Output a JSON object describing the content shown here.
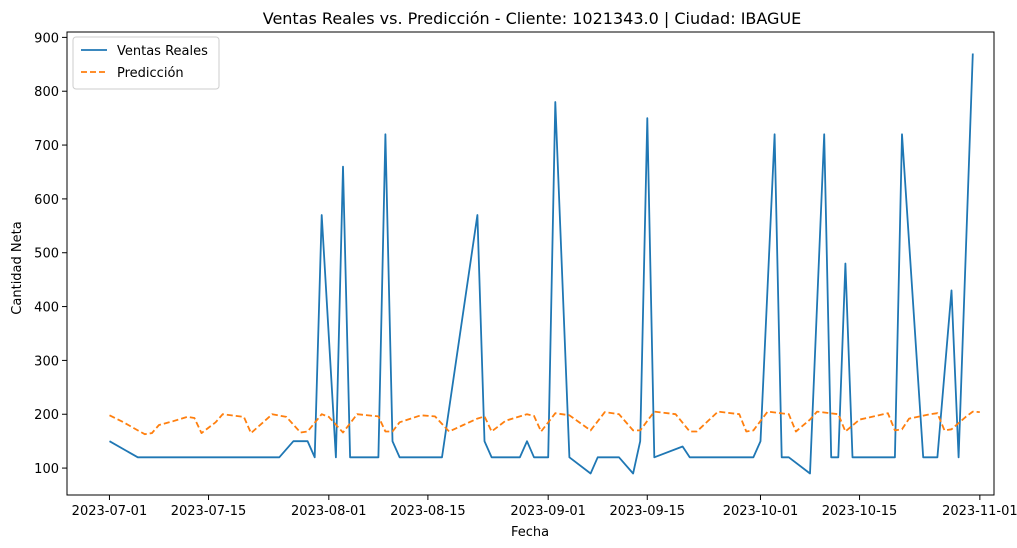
{
  "chart_data": {
    "type": "line",
    "title": "Ventas Reales vs. Predicción - Cliente: 1021343.0 | Ciudad: IBAGUE",
    "xlabel": "Fecha",
    "ylabel": "Cantidad Neta",
    "x_axis_type": "date",
    "xlim": [
      "2023-06-25",
      "2023-11-03"
    ],
    "ylim": [
      50,
      910
    ],
    "x_ticks": [
      "2023-07-01",
      "2023-07-15",
      "2023-08-01",
      "2023-08-15",
      "2023-09-01",
      "2023-09-15",
      "2023-10-01",
      "2023-10-15",
      "2023-11-01"
    ],
    "y_ticks": [
      100,
      200,
      300,
      400,
      500,
      600,
      700,
      800,
      900
    ],
    "grid": false,
    "legend": "top-left",
    "series": [
      {
        "name": "Ventas Reales",
        "color": "#1f77b4",
        "style": "solid",
        "points": [
          [
            "2023-07-01",
            150
          ],
          [
            "2023-07-05",
            120
          ],
          [
            "2023-07-25",
            120
          ],
          [
            "2023-07-27",
            150
          ],
          [
            "2023-07-29",
            150
          ],
          [
            "2023-07-30",
            120
          ],
          [
            "2023-07-31",
            570
          ],
          [
            "2023-08-02",
            120
          ],
          [
            "2023-08-03",
            660
          ],
          [
            "2023-08-04",
            120
          ],
          [
            "2023-08-08",
            120
          ],
          [
            "2023-08-09",
            720
          ],
          [
            "2023-08-10",
            150
          ],
          [
            "2023-08-11",
            120
          ],
          [
            "2023-08-17",
            120
          ],
          [
            "2023-08-22",
            570
          ],
          [
            "2023-08-23",
            150
          ],
          [
            "2023-08-24",
            120
          ],
          [
            "2023-08-28",
            120
          ],
          [
            "2023-08-29",
            150
          ],
          [
            "2023-08-30",
            120
          ],
          [
            "2023-09-01",
            120
          ],
          [
            "2023-09-02",
            780
          ],
          [
            "2023-09-04",
            120
          ],
          [
            "2023-09-07",
            90
          ],
          [
            "2023-09-08",
            120
          ],
          [
            "2023-09-11",
            120
          ],
          [
            "2023-09-13",
            90
          ],
          [
            "2023-09-14",
            150
          ],
          [
            "2023-09-15",
            750
          ],
          [
            "2023-09-16",
            120
          ],
          [
            "2023-09-20",
            140
          ],
          [
            "2023-09-21",
            120
          ],
          [
            "2023-09-30",
            120
          ],
          [
            "2023-10-01",
            150
          ],
          [
            "2023-10-03",
            720
          ],
          [
            "2023-10-04",
            120
          ],
          [
            "2023-10-05",
            120
          ],
          [
            "2023-10-08",
            90
          ],
          [
            "2023-10-10",
            720
          ],
          [
            "2023-10-11",
            120
          ],
          [
            "2023-10-12",
            120
          ],
          [
            "2023-10-13",
            480
          ],
          [
            "2023-10-14",
            120
          ],
          [
            "2023-10-20",
            120
          ],
          [
            "2023-10-21",
            720
          ],
          [
            "2023-10-24",
            120
          ],
          [
            "2023-10-26",
            120
          ],
          [
            "2023-10-28",
            430
          ],
          [
            "2023-10-29",
            120
          ],
          [
            "2023-10-31",
            870
          ]
        ]
      },
      {
        "name": "Predicción",
        "color": "#ff7f0e",
        "style": "dashed",
        "points": [
          [
            "2023-07-01",
            198
          ],
          [
            "2023-07-03",
            185
          ],
          [
            "2023-07-05",
            170
          ],
          [
            "2023-07-06",
            163
          ],
          [
            "2023-07-07",
            165
          ],
          [
            "2023-07-08",
            180
          ],
          [
            "2023-07-10",
            187
          ],
          [
            "2023-07-12",
            195
          ],
          [
            "2023-07-13",
            193
          ],
          [
            "2023-07-14",
            165
          ],
          [
            "2023-07-16",
            185
          ],
          [
            "2023-07-17",
            200
          ],
          [
            "2023-07-20",
            195
          ],
          [
            "2023-07-21",
            165
          ],
          [
            "2023-07-24",
            200
          ],
          [
            "2023-07-26",
            195
          ],
          [
            "2023-07-28",
            166
          ],
          [
            "2023-07-29",
            168
          ],
          [
            "2023-07-31",
            200
          ],
          [
            "2023-08-01",
            195
          ],
          [
            "2023-08-03",
            166
          ],
          [
            "2023-08-05",
            200
          ],
          [
            "2023-08-08",
            196
          ],
          [
            "2023-08-09",
            168
          ],
          [
            "2023-08-10",
            168
          ],
          [
            "2023-08-11",
            185
          ],
          [
            "2023-08-14",
            198
          ],
          [
            "2023-08-16",
            196
          ],
          [
            "2023-08-18",
            168
          ],
          [
            "2023-08-20",
            180
          ],
          [
            "2023-08-22",
            192
          ],
          [
            "2023-08-23",
            196
          ],
          [
            "2023-08-24",
            168
          ],
          [
            "2023-08-26",
            188
          ],
          [
            "2023-08-29",
            200
          ],
          [
            "2023-08-30",
            197
          ],
          [
            "2023-08-31",
            168
          ],
          [
            "2023-09-02",
            202
          ],
          [
            "2023-09-04",
            198
          ],
          [
            "2023-09-07",
            170
          ],
          [
            "2023-09-09",
            204
          ],
          [
            "2023-09-11",
            200
          ],
          [
            "2023-09-13",
            170
          ],
          [
            "2023-09-14",
            170
          ],
          [
            "2023-09-16",
            205
          ],
          [
            "2023-09-19",
            200
          ],
          [
            "2023-09-21",
            168
          ],
          [
            "2023-09-22",
            168
          ],
          [
            "2023-09-25",
            205
          ],
          [
            "2023-09-28",
            200
          ],
          [
            "2023-09-29",
            168
          ],
          [
            "2023-09-30",
            170
          ],
          [
            "2023-10-02",
            205
          ],
          [
            "2023-10-05",
            200
          ],
          [
            "2023-10-06",
            168
          ],
          [
            "2023-10-08",
            190
          ],
          [
            "2023-10-09",
            205
          ],
          [
            "2023-10-12",
            200
          ],
          [
            "2023-10-13",
            168
          ],
          [
            "2023-10-15",
            190
          ],
          [
            "2023-10-19",
            202
          ],
          [
            "2023-10-20",
            170
          ],
          [
            "2023-10-21",
            172
          ],
          [
            "2023-10-22",
            192
          ],
          [
            "2023-10-25",
            200
          ],
          [
            "2023-10-26",
            202
          ],
          [
            "2023-10-27",
            170
          ],
          [
            "2023-10-28",
            172
          ],
          [
            "2023-10-30",
            195
          ],
          [
            "2023-10-31",
            205
          ],
          [
            "2023-11-01",
            204
          ]
        ]
      }
    ]
  }
}
